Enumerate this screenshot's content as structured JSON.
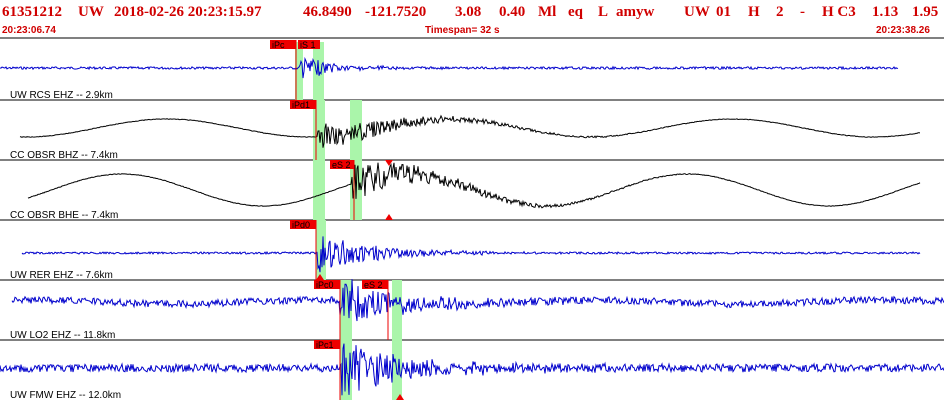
{
  "header": {
    "event_id": "61351212",
    "network": "UW",
    "origin_datetime": "2018-02-26 20:23:15.97",
    "latitude": "46.8490",
    "longitude": "-121.7520",
    "depth": "3.08",
    "magnitude": "0.40",
    "magtype": "Ml",
    "event_type": "eq",
    "flag": "L",
    "author": "amyw",
    "source": "UW",
    "version": "01",
    "flag_h": "H",
    "count": "2",
    "dash": "-",
    "quality": "H C3",
    "val1": "1.13",
    "val2": "1.95"
  },
  "time_bar": {
    "start": "20:23:06.74",
    "timespan": "Timespan=  32 s",
    "end": "20:23:38.26"
  },
  "colors": {
    "header_red": "#d00000",
    "trace_blue": "#0000cc",
    "trace_black": "#000000",
    "pick_window_green": "#aaf5aa",
    "pick_flag_red": "#ee0000"
  },
  "traces": [
    {
      "label": "UW RCS EHZ -- 2.9km",
      "picks": [
        "iPc",
        "iS 1"
      ],
      "color": "blue"
    },
    {
      "label": "CC OBSR BHZ -- 7.4km",
      "picks": [
        "iPd1"
      ],
      "color": "black"
    },
    {
      "label": "CC OBSR BHE -- 7.4km",
      "picks": [
        "eS 2"
      ],
      "color": "black"
    },
    {
      "label": "UW RER EHZ -- 7.6km",
      "picks": [
        "iPd0"
      ],
      "color": "blue"
    },
    {
      "label": "UW LO2 EHZ -- 11.8km",
      "picks": [
        "iPc0",
        "eS 2"
      ],
      "color": "blue"
    },
    {
      "label": "UW FMW EHZ -- 12.0km",
      "picks": [
        "iPc1"
      ],
      "color": "blue"
    }
  ]
}
